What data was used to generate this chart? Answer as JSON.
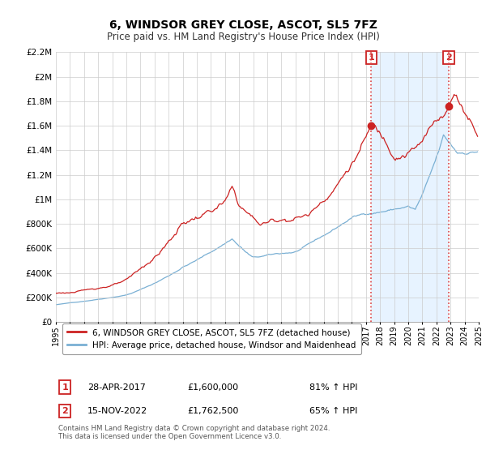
{
  "title": "6, WINDSOR GREY CLOSE, ASCOT, SL5 7FZ",
  "subtitle": "Price paid vs. HM Land Registry's House Price Index (HPI)",
  "ylim": [
    0,
    2200000
  ],
  "yticks": [
    0,
    200000,
    400000,
    600000,
    800000,
    1000000,
    1200000,
    1400000,
    1600000,
    1800000,
    2000000,
    2200000
  ],
  "hpi_color": "#7ab0d4",
  "price_color": "#cc2222",
  "ann1_x": 2017.37,
  "ann1_y": 1600000,
  "ann2_x": 2022.88,
  "ann2_y": 1762500,
  "shade_color": "#ddeeff",
  "vline_color": "#dd4444",
  "legend_line1": "6, WINDSOR GREY CLOSE, ASCOT, SL5 7FZ (detached house)",
  "legend_line2": "HPI: Average price, detached house, Windsor and Maidenhead",
  "footnote": "Contains HM Land Registry data © Crown copyright and database right 2024.\nThis data is licensed under the Open Government Licence v3.0.",
  "table_rows": [
    {
      "num": "1",
      "date": "28-APR-2017",
      "price": "£1,600,000",
      "pct": "81% ↑ HPI"
    },
    {
      "num": "2",
      "date": "15-NOV-2022",
      "price": "£1,762,500",
      "pct": "65% ↑ HPI"
    }
  ],
  "xmin": 1995,
  "xmax": 2025,
  "xticks_years": [
    1995,
    1996,
    1997,
    1998,
    1999,
    2000,
    2001,
    2002,
    2003,
    2004,
    2005,
    2006,
    2007,
    2008,
    2009,
    2010,
    2011,
    2012,
    2013,
    2014,
    2015,
    2016,
    2017,
    2018,
    2019,
    2020,
    2021,
    2022,
    2023,
    2024,
    2025
  ]
}
